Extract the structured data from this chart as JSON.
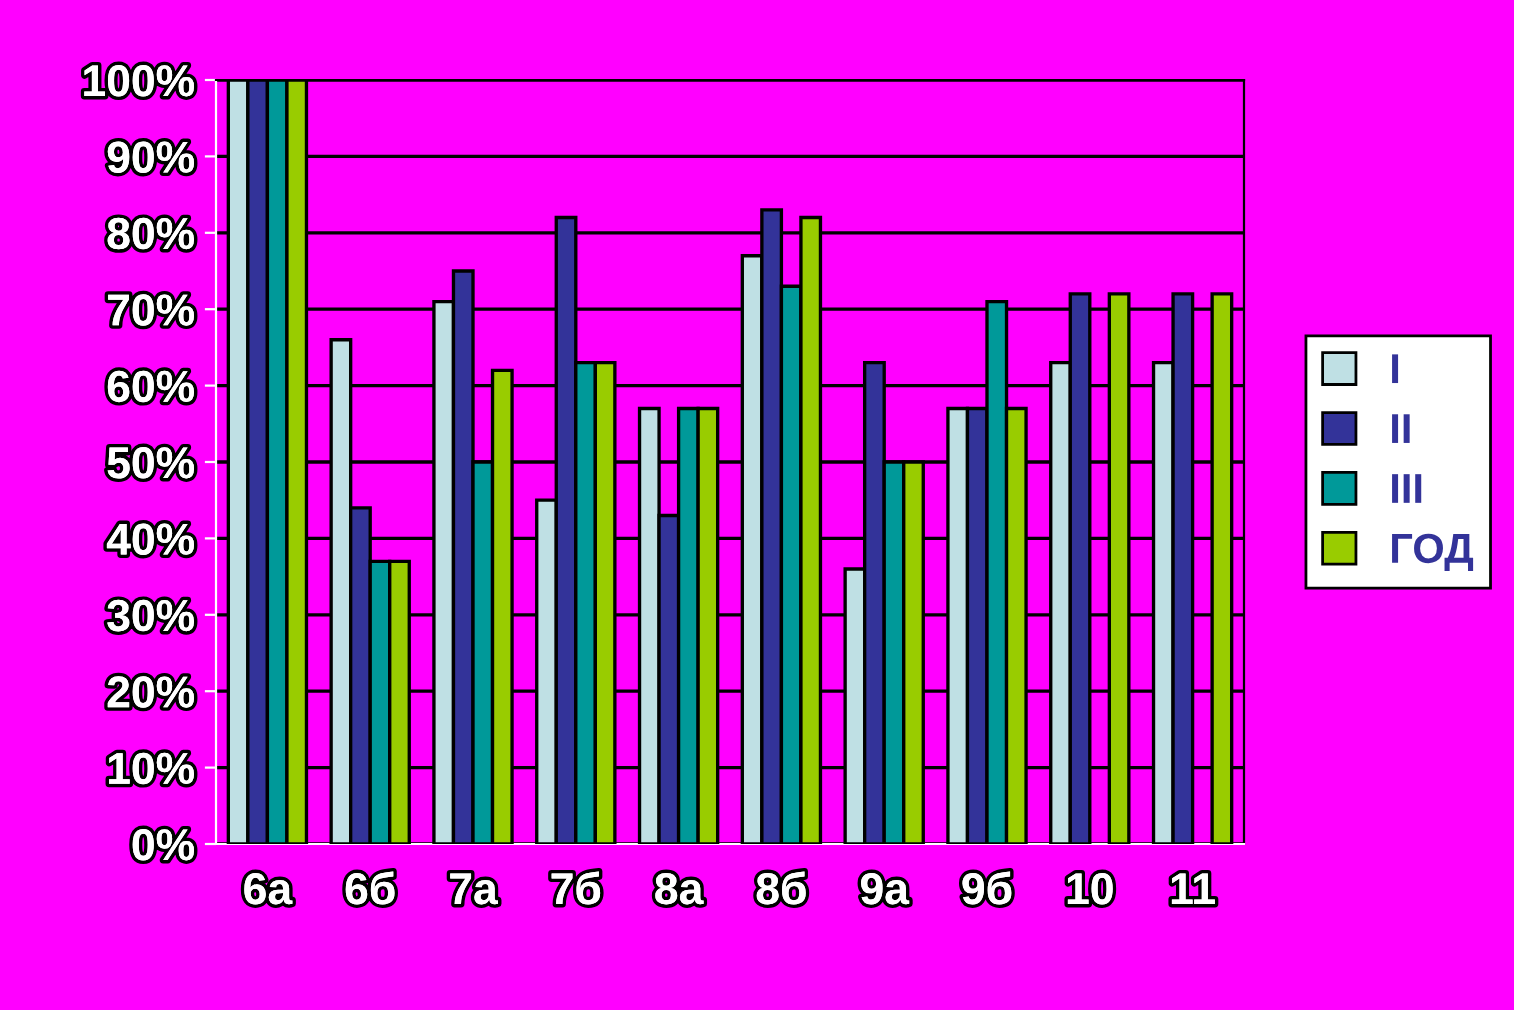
{
  "chart_data": {
    "type": "bar",
    "categories": [
      "6а",
      "6б",
      "7а",
      "7б",
      "8а",
      "8б",
      "9а",
      "9б",
      "10",
      "11"
    ],
    "series": [
      {
        "name": "I",
        "color": "#bfe0e4",
        "values": [
          100,
          66,
          71,
          45,
          57,
          77,
          36,
          57,
          63,
          63
        ]
      },
      {
        "name": "II",
        "color": "#333399",
        "values": [
          100,
          44,
          75,
          82,
          43,
          83,
          63,
          57,
          72,
          72
        ]
      },
      {
        "name": "III",
        "color": "#009999",
        "values": [
          100,
          37,
          50,
          63,
          57,
          73,
          50,
          71,
          null,
          null
        ]
      },
      {
        "name": "ГОД",
        "color": "#99cc00",
        "values": [
          100,
          37,
          62,
          63,
          57,
          82,
          50,
          57,
          72,
          72
        ]
      }
    ],
    "ylim": [
      0,
      100
    ],
    "yticks": [
      {
        "value": 0,
        "label": "0%"
      },
      {
        "value": 10,
        "label": "10%"
      },
      {
        "value": 20,
        "label": "20%"
      },
      {
        "value": 30,
        "label": "30%"
      },
      {
        "value": 40,
        "label": "40%"
      },
      {
        "value": 50,
        "label": "50%"
      },
      {
        "value": 60,
        "label": "60%"
      },
      {
        "value": 70,
        "label": "70%"
      },
      {
        "value": 80,
        "label": "80%"
      },
      {
        "value": 90,
        "label": "90%"
      },
      {
        "value": 100,
        "label": "100%"
      }
    ],
    "grid": "y",
    "legend": "right"
  }
}
